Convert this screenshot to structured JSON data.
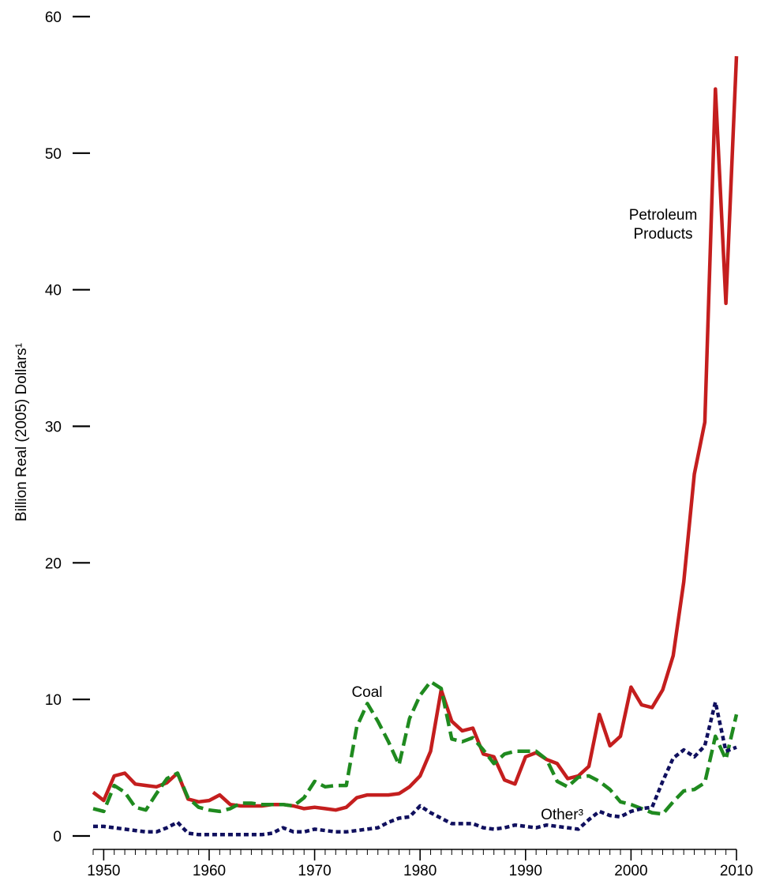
{
  "chart_data": {
    "type": "line",
    "ylabel": "Billion Real (2005) Dollars¹",
    "xlabel": "",
    "ylim": [
      0,
      60
    ],
    "xlim": [
      1949,
      2010
    ],
    "yticks": [
      0,
      10,
      20,
      30,
      40,
      50,
      60
    ],
    "xticks": [
      1950,
      1960,
      1970,
      1980,
      1990,
      2000,
      2010
    ],
    "grid": false,
    "legend": "none",
    "x": [
      1949,
      1950,
      1951,
      1952,
      1953,
      1954,
      1955,
      1956,
      1957,
      1958,
      1959,
      1960,
      1961,
      1962,
      1963,
      1964,
      1965,
      1966,
      1967,
      1968,
      1969,
      1970,
      1971,
      1972,
      1973,
      1974,
      1975,
      1976,
      1977,
      1978,
      1979,
      1980,
      1981,
      1982,
      1983,
      1984,
      1985,
      1986,
      1987,
      1988,
      1989,
      1990,
      1991,
      1992,
      1993,
      1994,
      1995,
      1996,
      1997,
      1998,
      1999,
      2000,
      2001,
      2002,
      2003,
      2004,
      2005,
      2006,
      2007,
      2008,
      2009,
      2010
    ],
    "series": [
      {
        "name": "Petroleum Products",
        "label_lines": [
          "Petroleum",
          "Products"
        ],
        "color": "#c41e1e",
        "style": "solid",
        "values": [
          3.2,
          2.6,
          4.4,
          4.6,
          3.8,
          3.7,
          3.6,
          3.9,
          4.6,
          2.7,
          2.5,
          2.6,
          3.0,
          2.3,
          2.2,
          2.2,
          2.2,
          2.3,
          2.3,
          2.2,
          2.0,
          2.1,
          2.0,
          1.9,
          2.1,
          2.8,
          3.0,
          3.0,
          3.0,
          3.1,
          3.6,
          4.4,
          6.2,
          10.7,
          8.4,
          7.7,
          7.9,
          6.0,
          5.8,
          4.1,
          3.8,
          5.8,
          6.1,
          5.6,
          5.3,
          4.2,
          4.4,
          5.1,
          8.9,
          6.6,
          7.3,
          10.9,
          9.6,
          9.4,
          10.7,
          13.2,
          18.6,
          26.5,
          30.3,
          54.7,
          39.0,
          57.1
        ]
      },
      {
        "name": "Coal",
        "label_lines": [
          "Coal"
        ],
        "color": "#1f8a1f",
        "style": "dashed",
        "values": [
          2.0,
          1.8,
          3.7,
          3.2,
          2.1,
          1.9,
          3.1,
          4.2,
          4.6,
          2.8,
          2.1,
          1.9,
          1.8,
          2.0,
          2.4,
          2.4,
          2.3,
          2.3,
          2.3,
          2.2,
          2.8,
          4.0,
          3.6,
          3.7,
          3.7,
          8.0,
          9.7,
          8.4,
          6.9,
          5.2,
          8.6,
          10.3,
          11.3,
          10.8,
          7.1,
          6.9,
          7.2,
          6.3,
          5.3,
          6.0,
          6.2,
          6.2,
          6.2,
          5.6,
          4.0,
          3.6,
          4.3,
          4.4,
          4.0,
          3.4,
          2.5,
          2.3,
          2.0,
          1.7,
          1.6,
          2.5,
          3.3,
          3.4,
          3.9,
          7.3,
          5.6,
          8.9
        ]
      },
      {
        "name": "Other³",
        "label_lines": [
          "Other³"
        ],
        "color": "#10105e",
        "style": "dotted",
        "values": [
          0.7,
          0.7,
          0.6,
          0.5,
          0.4,
          0.3,
          0.3,
          0.6,
          1.0,
          0.2,
          0.1,
          0.1,
          0.1,
          0.1,
          0.1,
          0.1,
          0.1,
          0.2,
          0.6,
          0.3,
          0.3,
          0.5,
          0.4,
          0.3,
          0.3,
          0.4,
          0.5,
          0.6,
          1.0,
          1.3,
          1.4,
          2.2,
          1.7,
          1.3,
          0.9,
          0.9,
          0.9,
          0.6,
          0.5,
          0.6,
          0.8,
          0.7,
          0.6,
          0.8,
          0.7,
          0.6,
          0.5,
          1.2,
          1.8,
          1.5,
          1.4,
          1.8,
          2.0,
          2.1,
          4.0,
          5.7,
          6.3,
          5.8,
          6.6,
          9.8,
          6.2,
          6.5
        ]
      }
    ]
  }
}
